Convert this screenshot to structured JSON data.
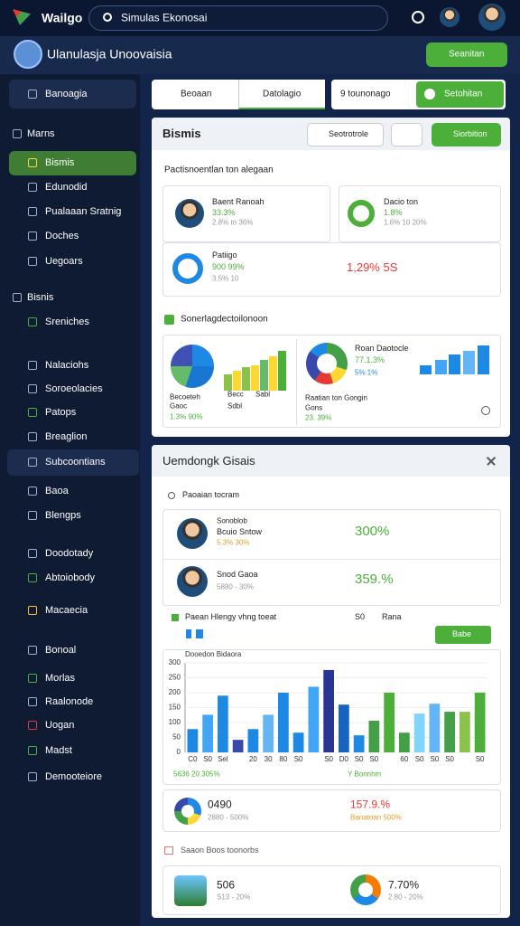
{
  "top_bar": {
    "logo": "Wailgo",
    "search": "Simulas Ekonosai"
  },
  "header": {
    "title": "Ulanulasja Unoovaisia",
    "button": "Seanitan"
  },
  "sidebar": {
    "items": [
      "Banoagia",
      "Marns",
      "Bismis",
      "Edunodid",
      "Pualaaan Sratnig",
      "Doches",
      "Uegoars",
      "Bisnis",
      "Sreniches",
      "Nalaciohs",
      "Soroeolacies",
      "Patops",
      "Breaglion",
      "Subcoontians",
      "Baoa",
      "Blengps",
      "Doodotady",
      "Abtoiobody",
      "Macaecia",
      "Bonoal",
      "Morlas",
      "Raalonode",
      "Uogan",
      "Madst",
      "Demooteiore"
    ]
  },
  "tabs": [
    "Beoaan",
    "Datolagio",
    "9 tounonago",
    "Setohitan"
  ],
  "panel1": {
    "title": "Bismis",
    "buttons": [
      "Seotrotrole",
      "Siorbition"
    ],
    "subtitle": "Pactisnoentlan ton alegaan",
    "cards": [
      {
        "name": "Baent Ranoah",
        "value": "33.3%",
        "note": "2.8% to 36%"
      },
      {
        "name": "Dacio ton",
        "value": "1.8%",
        "note": "1.6% 10 20%"
      },
      {
        "name": "Patiigo",
        "value": "900 99%",
        "note": "3.5% 10"
      },
      {
        "value": "1,29% 5S"
      }
    ],
    "section": "Sonerlagdectoilonoon",
    "chart_left": {
      "label": "Becoeteh",
      "sub": "Gaoc",
      "value": "1.3% 90%",
      "legend": [
        "Becc",
        "Sabl",
        "Sdbl"
      ]
    },
    "chart_right": {
      "name": "Roan Daotocle",
      "value": "77.1.3%",
      "note": "5% 1%",
      "label": "Raatian ton Gongin",
      "sub": "Gons",
      "foot": "23. 39%"
    }
  },
  "panel2": {
    "title": "Uemdongk Gisais",
    "subtitle": "Paoaian tocram",
    "people": [
      {
        "tag": "Sonoblob",
        "name": "Bcuio Sntow",
        "note": "5.3% 30%",
        "value": "300%"
      },
      {
        "name": "Snod Gaoa",
        "note": "5880 - 30%",
        "value": "359.%"
      }
    ],
    "row": {
      "label": "Paean Hlengy vhng toeat",
      "a": "S0",
      "b": "Rana",
      "button": "Babe"
    },
    "chart_foot": [
      "5636 20.305%",
      "Y Bonnhm"
    ],
    "stats": [
      {
        "value": "0490",
        "note": "2880 - 500%"
      },
      {
        "value": "157.9.%",
        "note": "Banatoan 500%"
      }
    ],
    "section": "Saaon Boos toonorbs",
    "bottom": [
      {
        "value": "506",
        "note": "S13 - 20%"
      },
      {
        "value": "7.70%",
        "note": "2.80 - 20%"
      }
    ]
  },
  "chart_data": {
    "type": "bar",
    "title": "Dooedon Bidaora",
    "categories": [
      "C0",
      "S0",
      "Sel",
      null,
      "20",
      "30",
      "80",
      "S0",
      null,
      "S0",
      "D0",
      "S0",
      "S0",
      null,
      "60",
      "S0",
      "S0",
      "S0",
      null,
      "S0"
    ],
    "values": [
      78,
      126,
      190,
      42,
      78,
      126,
      200,
      66,
      220,
      276,
      160,
      57,
      106,
      200,
      66,
      130,
      163,
      136,
      136,
      200
    ],
    "colors": [
      "#1e88e5",
      "#42a5f5",
      "#1e88e5",
      "#3949ab",
      "#1e88e5",
      "#64b5f6",
      "#1e88e5",
      "#1e88e5",
      "#42a5f5",
      "#283593",
      "#1565c0",
      "#1e88e5",
      "#43a047",
      "#4caf3a",
      "#43a047",
      "#81d4fa",
      "#64b5f6",
      "#43a047",
      "#8bc34a",
      "#4caf3a"
    ],
    "ylim": [
      0,
      300
    ],
    "yticks": [
      0,
      50,
      100,
      150,
      200,
      250,
      300
    ],
    "grid": true
  }
}
